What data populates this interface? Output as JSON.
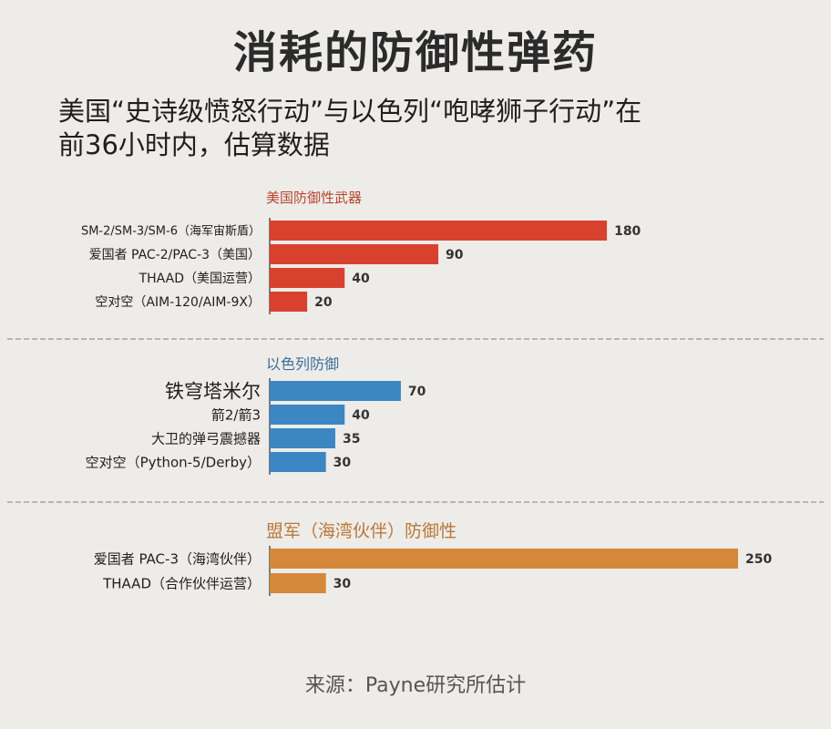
{
  "title": "消耗的防御性弹药",
  "subtitle_line1": "美国“史诗级愤怒行动”与以色列“咆哮狮子行动”在",
  "subtitle_line2": "前36小时内，估算数据",
  "source": "来源：Payne研究所估计",
  "chart_data": {
    "type": "bar",
    "orientation": "horizontal",
    "xlim": [
      0,
      250
    ],
    "grid": false,
    "groups": [
      {
        "name": "美国防御性武器",
        "color": "#d9412f",
        "label_color": "#b5452f",
        "categories": [
          "SM-2/SM-3/SM-6（海军宙斯盾）",
          "爱国者 PAC-2/PAC-3（美国）",
          "THAAD（美国运营）",
          "空对空（AIM-120/AIM-9X）"
        ],
        "values": [
          180,
          90,
          40,
          20
        ],
        "value_labels": [
          "180",
          "90",
          "40",
          "20"
        ]
      },
      {
        "name": "以色列防御",
        "color": "#3b86c3",
        "label_color": "#3a6f9c",
        "categories": [
          "铁穹塔米尔",
          "箭2/箭3",
          "大卫的弹弓震撼器",
          "空对空（Python-5/Derby）"
        ],
        "values": [
          70,
          40,
          35,
          30
        ],
        "value_labels": [
          "70",
          "40",
          "35",
          "30"
        ]
      },
      {
        "name": "盟军（海湾伙伴）防御性",
        "color": "#d4883a",
        "label_color": "#b9773a",
        "categories": [
          "爱国者 PAC-3（海湾伙伴）",
          "THAAD（合作伙伴运营）"
        ],
        "values": [
          250,
          30
        ],
        "value_labels": [
          "250",
          "30"
        ]
      }
    ]
  }
}
